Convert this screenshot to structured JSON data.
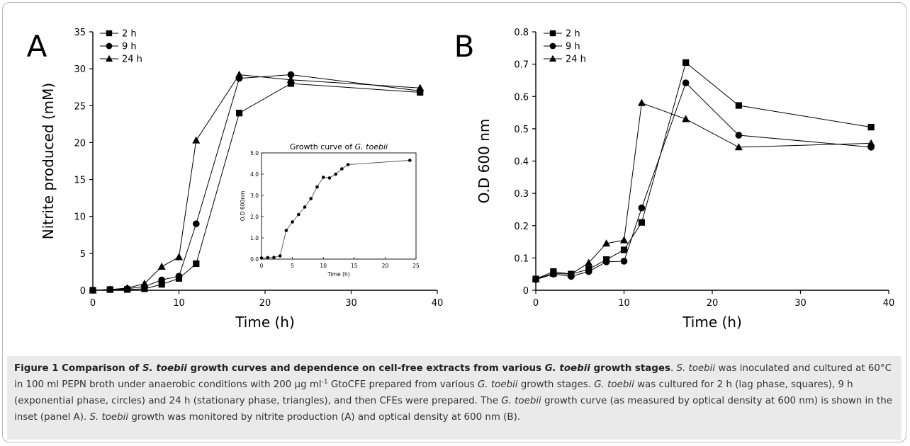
{
  "chart_data": [
    {
      "type": "line",
      "panel_label": "A",
      "ylabel": "Nitrite produced (mM)",
      "xlabel": "Time (h)",
      "xlim": [
        0,
        40
      ],
      "ylim": [
        0,
        35
      ],
      "xticks": [
        0,
        10,
        20,
        30,
        40
      ],
      "yticks": [
        0,
        5,
        10,
        15,
        20,
        25,
        30,
        35
      ],
      "legend_position": "top-left",
      "series": [
        {
          "name": "2 h",
          "marker": "square",
          "x": [
            0,
            2,
            4,
            6,
            8,
            10,
            12,
            17,
            23,
            38
          ],
          "y": [
            0,
            0.1,
            0.1,
            0.2,
            0.8,
            1.6,
            3.6,
            24,
            28,
            26.8
          ]
        },
        {
          "name": "9 h",
          "marker": "circle",
          "x": [
            0,
            2,
            4,
            6,
            8,
            10,
            12,
            17,
            23,
            38
          ],
          "y": [
            0,
            0.1,
            0.2,
            0.5,
            1.4,
            1.9,
            9,
            28.7,
            29.2,
            27
          ]
        },
        {
          "name": "24 h",
          "marker": "triangle",
          "x": [
            0,
            2,
            4,
            6,
            8,
            10,
            12,
            17,
            23,
            38
          ],
          "y": [
            0,
            0.1,
            0.3,
            0.9,
            3.2,
            4.5,
            20.3,
            29.2,
            28.5,
            27.4
          ]
        }
      ],
      "inset": {
        "type": "line",
        "title": "Growth curve of G. toebii",
        "title_plain": "Growth curve of ",
        "title_italic": "G. toebii",
        "xlabel": "Time (h)",
        "ylabel": "O.D 600nm",
        "xlim": [
          0,
          25
        ],
        "ylim": [
          0,
          5
        ],
        "xticks": [
          "0",
          "5",
          "10",
          "15",
          "20",
          "25"
        ],
        "yticks": [
          "0.0",
          "1.0",
          "2.0",
          "3.0",
          "4.0",
          "5.0"
        ],
        "x": [
          0,
          1,
          2,
          3,
          4,
          5,
          6,
          7,
          8,
          9,
          10,
          11,
          12,
          13,
          14,
          24
        ],
        "y": [
          0.05,
          0.07,
          0.08,
          0.15,
          1.35,
          1.75,
          2.1,
          2.45,
          2.85,
          3.4,
          3.85,
          3.82,
          4.0,
          4.25,
          4.45,
          4.65
        ]
      }
    },
    {
      "type": "line",
      "panel_label": "B",
      "ylabel": "O.D 600 nm",
      "xlabel": "Time (h)",
      "xlim": [
        0,
        40
      ],
      "ylim": [
        0,
        0.8
      ],
      "xticks": [
        0,
        10,
        20,
        30,
        40
      ],
      "yticks": [
        "0",
        "0.1",
        "0.2",
        "0.3",
        "0.4",
        "0.5",
        "0.6",
        "0.7",
        "0.8"
      ],
      "legend_position": "top-left",
      "series": [
        {
          "name": "2 h",
          "marker": "square",
          "x": [
            0,
            2,
            4,
            6,
            8,
            10,
            12,
            17,
            23,
            38
          ],
          "y": [
            0.035,
            0.058,
            0.05,
            0.065,
            0.095,
            0.125,
            0.21,
            0.705,
            0.572,
            0.505
          ]
        },
        {
          "name": "9 h",
          "marker": "circle",
          "x": [
            0,
            2,
            4,
            6,
            8,
            10,
            12,
            17,
            23,
            38
          ],
          "y": [
            0.033,
            0.05,
            0.043,
            0.058,
            0.088,
            0.09,
            0.255,
            0.642,
            0.48,
            0.443
          ]
        },
        {
          "name": "24 h",
          "marker": "triangle",
          "x": [
            0,
            2,
            4,
            6,
            8,
            10,
            12,
            17,
            23,
            38
          ],
          "y": [
            0.035,
            0.052,
            0.05,
            0.085,
            0.145,
            0.155,
            0.58,
            0.53,
            0.443,
            0.455
          ]
        }
      ]
    }
  ],
  "caption": {
    "segments": [
      {
        "t": "Figure 1 Comparison of ",
        "s": "b"
      },
      {
        "t": "S. toebii",
        "s": "bi"
      },
      {
        "t": " growth curves and dependence on cell-free extracts from various ",
        "s": "b"
      },
      {
        "t": "G. toebii",
        "s": "bi"
      },
      {
        "t": " growth stages",
        "s": "b"
      },
      {
        "t": ". ",
        "s": ""
      },
      {
        "t": "S. toebii",
        "s": "i"
      },
      {
        "t": " was inoculated and cultured at 60°C in 100 ml PEPN broth under anaerobic conditions with 200 µg ml",
        "s": ""
      },
      {
        "t": "-1",
        "s": "sup"
      },
      {
        "t": " GtoCFE prepared from various ",
        "s": ""
      },
      {
        "t": "G. toebii",
        "s": "i"
      },
      {
        "t": " growth stages. ",
        "s": ""
      },
      {
        "t": "G. toebii",
        "s": "i"
      },
      {
        "t": " was cultured for 2 h (lag phase, squares), 9 h (exponential phase, circles) and 24 h (stationary phase, triangles), and then CFEs were prepared. The ",
        "s": ""
      },
      {
        "t": "G. toebii",
        "s": "i"
      },
      {
        "t": " growth curve (as measured by optical density at 600 nm) is shown in the inset (panel A). ",
        "s": ""
      },
      {
        "t": "S. toebii",
        "s": "i"
      },
      {
        "t": " growth was monitored by nitrite production (A) and optical density at 600 nm (B).",
        "s": ""
      }
    ]
  }
}
